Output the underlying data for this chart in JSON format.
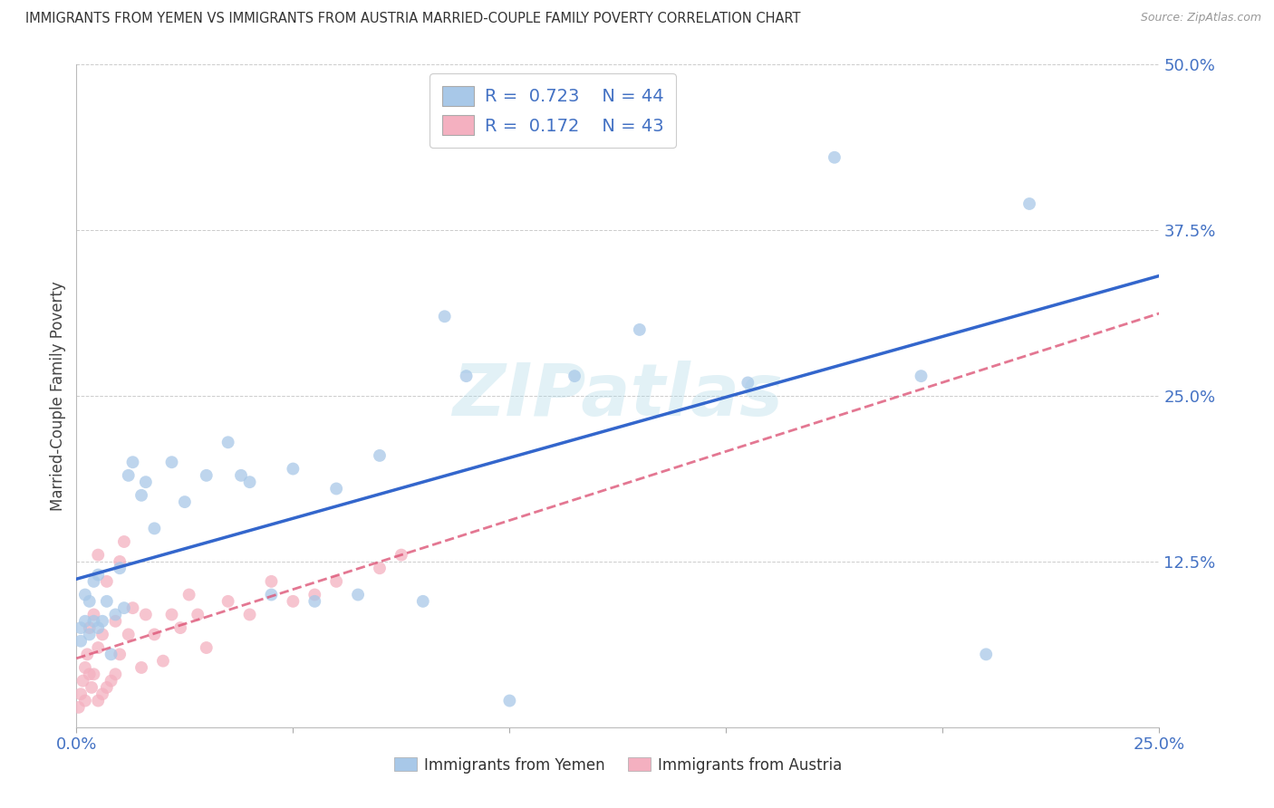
{
  "title": "IMMIGRANTS FROM YEMEN VS IMMIGRANTS FROM AUSTRIA MARRIED-COUPLE FAMILY POVERTY CORRELATION CHART",
  "source": "Source: ZipAtlas.com",
  "tick_color": "#4472c4",
  "ylabel": "Married-Couple Family Poverty",
  "xlim": [
    0,
    0.25
  ],
  "ylim": [
    0,
    0.5
  ],
  "xticks": [
    0.0,
    0.05,
    0.1,
    0.15,
    0.2,
    0.25
  ],
  "yticks": [
    0.0,
    0.125,
    0.25,
    0.375,
    0.5
  ],
  "xtick_labels": [
    "0.0%",
    "",
    "",
    "",
    "",
    "25.0%"
  ],
  "ytick_labels_right": [
    "",
    "12.5%",
    "25.0%",
    "37.5%",
    "50.0%"
  ],
  "background_color": "#ffffff",
  "grid_color": "#cccccc",
  "legend_R1": "R = 0.723",
  "legend_N1": "N = 44",
  "legend_R2": "R = 0.172",
  "legend_N2": "N = 43",
  "legend_label1": "Immigrants from Yemen",
  "legend_label2": "Immigrants from Austria",
  "color_yemen": "#a8c8e8",
  "color_austria": "#f4b0c0",
  "line_color_yemen": "#3366cc",
  "line_color_austria": "#dd5577",
  "watermark": "ZIPatlas",
  "yemen_x": [
    0.001,
    0.001,
    0.002,
    0.002,
    0.003,
    0.003,
    0.004,
    0.004,
    0.005,
    0.005,
    0.006,
    0.007,
    0.008,
    0.009,
    0.01,
    0.011,
    0.012,
    0.013,
    0.015,
    0.016,
    0.018,
    0.022,
    0.025,
    0.03,
    0.035,
    0.038,
    0.04,
    0.045,
    0.05,
    0.055,
    0.06,
    0.065,
    0.07,
    0.08,
    0.085,
    0.09,
    0.1,
    0.115,
    0.13,
    0.155,
    0.175,
    0.195,
    0.21,
    0.22
  ],
  "yemen_y": [
    0.065,
    0.075,
    0.08,
    0.1,
    0.07,
    0.095,
    0.08,
    0.11,
    0.115,
    0.075,
    0.08,
    0.095,
    0.055,
    0.085,
    0.12,
    0.09,
    0.19,
    0.2,
    0.175,
    0.185,
    0.15,
    0.2,
    0.17,
    0.19,
    0.215,
    0.19,
    0.185,
    0.1,
    0.195,
    0.095,
    0.18,
    0.1,
    0.205,
    0.095,
    0.31,
    0.265,
    0.02,
    0.265,
    0.3,
    0.26,
    0.43,
    0.265,
    0.055,
    0.395
  ],
  "austria_x": [
    0.0005,
    0.001,
    0.0015,
    0.002,
    0.002,
    0.0025,
    0.003,
    0.003,
    0.0035,
    0.004,
    0.004,
    0.005,
    0.005,
    0.005,
    0.006,
    0.006,
    0.007,
    0.007,
    0.008,
    0.009,
    0.009,
    0.01,
    0.01,
    0.011,
    0.012,
    0.013,
    0.015,
    0.016,
    0.018,
    0.02,
    0.022,
    0.024,
    0.026,
    0.028,
    0.03,
    0.035,
    0.04,
    0.045,
    0.05,
    0.055,
    0.06,
    0.07,
    0.075
  ],
  "austria_y": [
    0.015,
    0.025,
    0.035,
    0.045,
    0.02,
    0.055,
    0.04,
    0.075,
    0.03,
    0.04,
    0.085,
    0.02,
    0.06,
    0.13,
    0.025,
    0.07,
    0.03,
    0.11,
    0.035,
    0.04,
    0.08,
    0.125,
    0.055,
    0.14,
    0.07,
    0.09,
    0.045,
    0.085,
    0.07,
    0.05,
    0.085,
    0.075,
    0.1,
    0.085,
    0.06,
    0.095,
    0.085,
    0.11,
    0.095,
    0.1,
    0.11,
    0.12,
    0.13
  ]
}
